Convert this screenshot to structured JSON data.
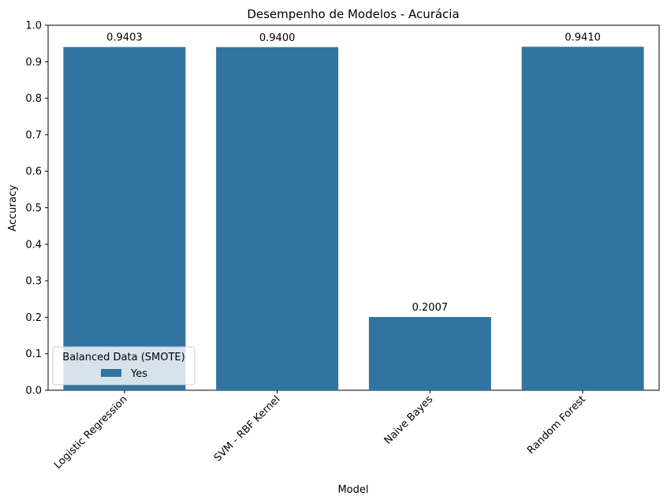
{
  "chart_data": {
    "type": "bar",
    "title": "Desempenho de Modelos - Acurácia",
    "xlabel": "Model",
    "ylabel": "Accuracy",
    "categories": [
      "Logistic Regression",
      "SVM - RBF Kernel",
      "Naive Bayes",
      "Random Forest"
    ],
    "series": [
      {
        "name": "Yes",
        "values": [
          0.9403,
          0.94,
          0.2007,
          0.941
        ],
        "labels": [
          "0.9403",
          "0.9400",
          "0.2007",
          "0.9410"
        ],
        "color": "#3274a1"
      }
    ],
    "ylim": [
      0,
      1.0
    ],
    "yticks": [
      "0.0",
      "0.1",
      "0.2",
      "0.3",
      "0.4",
      "0.5",
      "0.6",
      "0.7",
      "0.8",
      "0.9",
      "1.0"
    ],
    "grid": false,
    "legend": {
      "title": "Balanced Data (SMOTE)",
      "placement": "lower-left"
    }
  }
}
